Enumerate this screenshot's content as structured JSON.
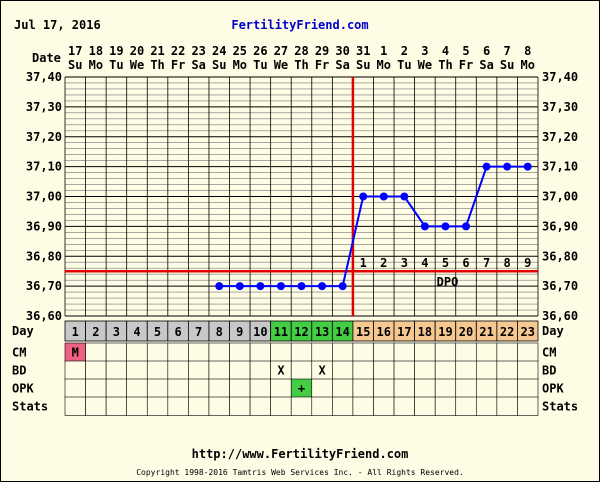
{
  "header": {
    "date": "Jul 17, 2016",
    "site": "FertilityFriend.com"
  },
  "footer": {
    "url": "http://www.FertilityFriend.com",
    "copyright": "Copyright 1998-2016 Tamtris Web Services Inc. - All Rights Reserved."
  },
  "row_labels": {
    "date": "Date",
    "day": "Day",
    "cm": "CM",
    "bd": "BD",
    "opk": "OPK",
    "stats": "Stats"
  },
  "colors": {
    "line": "#0000ff",
    "coverline": "#e00000",
    "grid_minor": "#777777",
    "day_pre": "#c8c8c8",
    "day_fertile": "#44cc44",
    "day_post": "#f4c890",
    "cm_m": "#f06080",
    "opk_plus": "#44cc44"
  },
  "chart_data": {
    "type": "line",
    "ylim": [
      36.6,
      37.4
    ],
    "y_ticks": [
      "37,40",
      "37,30",
      "37,20",
      "37,10",
      "37,00",
      "36,90",
      "36,80",
      "36,70",
      "36,60"
    ],
    "dates": [
      "17",
      "18",
      "19",
      "20",
      "21",
      "22",
      "23",
      "24",
      "25",
      "26",
      "27",
      "28",
      "29",
      "30",
      "31",
      "1",
      "2",
      "3",
      "4",
      "5",
      "6",
      "7",
      "8"
    ],
    "weekdays": [
      "Su",
      "Mo",
      "Tu",
      "We",
      "Th",
      "Fr",
      "Sa",
      "Su",
      "Mo",
      "Tu",
      "We",
      "Th",
      "Fr",
      "Sa",
      "Su",
      "Mo",
      "Tu",
      "We",
      "Th",
      "Fr",
      "Sa",
      "Su",
      "Mo"
    ],
    "cycle_days": [
      "1",
      "2",
      "3",
      "4",
      "5",
      "6",
      "7",
      "8",
      "9",
      "10",
      "11",
      "12",
      "13",
      "14",
      "15",
      "16",
      "17",
      "18",
      "19",
      "20",
      "21",
      "22",
      "23"
    ],
    "day_status": [
      "pre",
      "pre",
      "pre",
      "pre",
      "pre",
      "pre",
      "pre",
      "pre",
      "pre",
      "pre",
      "fertile",
      "fertile",
      "fertile",
      "fertile",
      "post",
      "post",
      "post",
      "post",
      "post",
      "post",
      "post",
      "post",
      "post"
    ],
    "temperatures": [
      null,
      null,
      null,
      null,
      null,
      null,
      null,
      36.7,
      36.7,
      36.7,
      36.7,
      36.7,
      36.7,
      36.7,
      37.0,
      37.0,
      37.0,
      36.9,
      36.9,
      36.9,
      37.1,
      37.1,
      37.1
    ],
    "coverline": 36.75,
    "ovulation_day_index": 13,
    "dpo_labels": [
      "1",
      "2",
      "3",
      "4",
      "5",
      "6",
      "7",
      "8",
      "9"
    ],
    "dpo_title": "DPO",
    "cm": [
      "M",
      "",
      "",
      "",
      "",
      "",
      "",
      "",
      "",
      "",
      "",
      "",
      "",
      "",
      "",
      "",
      "",
      "",
      "",
      "",
      "",
      "",
      ""
    ],
    "bd": [
      "",
      "",
      "",
      "",
      "",
      "",
      "",
      "",
      "",
      "",
      "X",
      "",
      "X",
      "",
      "",
      "",
      "",
      "",
      "",
      "",
      "",
      "",
      ""
    ],
    "opk": [
      "",
      "",
      "",
      "",
      "",
      "",
      "",
      "",
      "",
      "",
      "",
      "+",
      "",
      "",
      "",
      "",
      "",
      "",
      "",
      "",
      "",
      "",
      ""
    ],
    "stats": [
      "",
      "",
      "",
      "",
      "",
      "",
      "",
      "",
      "",
      "",
      "",
      "",
      "",
      "",
      "",
      "",
      "",
      "",
      "",
      "",
      "",
      "",
      ""
    ]
  }
}
